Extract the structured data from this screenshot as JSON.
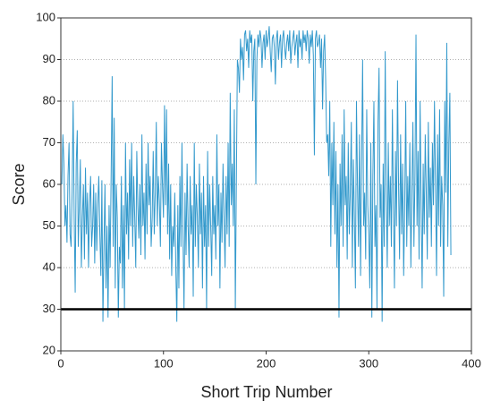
{
  "chart_data": {
    "type": "line",
    "xlabel": "Short Trip Number",
    "ylabel": "Score",
    "xlim": [
      0,
      400
    ],
    "xticks": [
      0,
      100,
      200,
      300,
      400
    ],
    "ylim": [
      20,
      100
    ],
    "yticks": [
      20,
      30,
      40,
      50,
      60,
      70,
      80,
      90,
      100
    ],
    "grid": true,
    "reference_line": 30,
    "reference_color": "#000000",
    "series": [
      {
        "name": null,
        "color": "#3399cc",
        "x": [
          1,
          2,
          3,
          4,
          5,
          6,
          7,
          8,
          9,
          10,
          11,
          12,
          13,
          14,
          15,
          16,
          17,
          18,
          19,
          20,
          21,
          22,
          23,
          24,
          25,
          26,
          27,
          28,
          29,
          30,
          31,
          32,
          33,
          34,
          35,
          36,
          37,
          38,
          39,
          40,
          41,
          42,
          43,
          44,
          45,
          46,
          47,
          48,
          49,
          50,
          51,
          52,
          53,
          54,
          55,
          56,
          57,
          58,
          59,
          60,
          61,
          62,
          63,
          64,
          65,
          66,
          67,
          68,
          69,
          70,
          71,
          72,
          73,
          74,
          75,
          76,
          77,
          78,
          79,
          80,
          81,
          82,
          83,
          84,
          85,
          86,
          87,
          88,
          89,
          90,
          91,
          92,
          93,
          94,
          95,
          96,
          97,
          98,
          99,
          100,
          101,
          102,
          103,
          104,
          105,
          106,
          107,
          108,
          109,
          110,
          111,
          112,
          113,
          114,
          115,
          116,
          117,
          118,
          119,
          120,
          121,
          122,
          123,
          124,
          125,
          126,
          127,
          128,
          129,
          130,
          131,
          132,
          133,
          134,
          135,
          136,
          137,
          138,
          139,
          140,
          141,
          142,
          143,
          144,
          145,
          146,
          147,
          148,
          149,
          150,
          151,
          152,
          153,
          154,
          155,
          156,
          157,
          158,
          159,
          160,
          161,
          162,
          163,
          164,
          165,
          166,
          167,
          168,
          169,
          170,
          171,
          172,
          173,
          174,
          175,
          176,
          177,
          178,
          179,
          180,
          181,
          182,
          183,
          184,
          185,
          186,
          187,
          188,
          189,
          190,
          191,
          192,
          193,
          194,
          195,
          196,
          197,
          198,
          199,
          200,
          201,
          202,
          203,
          204,
          205,
          206,
          207,
          208,
          209,
          210,
          211,
          212,
          213,
          214,
          215,
          216,
          217,
          218,
          219,
          220,
          221,
          222,
          223,
          224,
          225,
          226,
          227,
          228,
          229,
          230,
          231,
          232,
          233,
          234,
          235,
          236,
          237,
          238,
          239,
          240,
          241,
          242,
          243,
          244,
          245,
          246,
          247,
          248,
          249,
          250,
          251,
          252,
          253,
          254,
          255,
          256,
          257,
          258,
          259,
          260,
          261,
          262,
          263,
          264,
          265,
          266,
          267,
          268,
          269,
          270,
          271,
          272,
          273,
          274,
          275,
          276,
          277,
          278,
          279,
          280,
          281,
          282,
          283,
          284,
          285,
          286,
          287,
          288,
          289,
          290,
          291,
          292,
          293,
          294,
          295,
          296,
          297,
          298,
          299,
          300,
          301,
          302,
          303,
          304,
          305,
          306,
          307,
          308,
          309,
          310,
          311,
          312,
          313,
          314,
          315,
          316,
          317,
          318,
          319,
          320,
          321,
          322,
          323,
          324,
          325,
          326,
          327,
          328,
          329,
          330,
          331,
          332,
          333,
          334,
          335,
          336,
          337,
          338,
          339,
          340,
          341,
          342,
          343,
          344,
          345,
          346,
          347,
          348,
          349,
          350,
          351,
          352,
          353,
          354,
          355,
          356,
          357,
          358,
          359,
          360,
          361,
          362,
          363,
          364,
          365,
          366,
          367,
          368,
          369,
          370,
          371,
          372,
          373,
          374,
          375,
          376,
          377,
          378,
          379,
          380
        ],
        "values": [
          60,
          72,
          65,
          50,
          55,
          46,
          62,
          70,
          48,
          45,
          58,
          80,
          52,
          34,
          65,
          73,
          45,
          55,
          66,
          40,
          52,
          60,
          42,
          64,
          48,
          58,
          40,
          55,
          62,
          45,
          50,
          60,
          41,
          58,
          44,
          55,
          62,
          48,
          38,
          61,
          27,
          45,
          60,
          35,
          50,
          28,
          55,
          40,
          62,
          86,
          45,
          76,
          35,
          60,
          52,
          28,
          45,
          41,
          62,
          35,
          55,
          30,
          70,
          48,
          58,
          42,
          66,
          50,
          70,
          45,
          62,
          52,
          40,
          68,
          55,
          47,
          60,
          43,
          72,
          50,
          58,
          42,
          65,
          48,
          70,
          55,
          62,
          45,
          52,
          68,
          48,
          58,
          75,
          50,
          62,
          56,
          45,
          70,
          60,
          52,
          79,
          55,
          78,
          48,
          65,
          42,
          60,
          38,
          50,
          45,
          58,
          40,
          27,
          55,
          35,
          62,
          45,
          70,
          48,
          30,
          58,
          43,
          65,
          50,
          40,
          62,
          48,
          55,
          33,
          70,
          45,
          60,
          52,
          40,
          65,
          48,
          58,
          35,
          62,
          45,
          55,
          30,
          68,
          45,
          60,
          50,
          38,
          62,
          48,
          55,
          42,
          72,
          50,
          60,
          35,
          58,
          46,
          65,
          52,
          40,
          62,
          48,
          70,
          45,
          82,
          55,
          65,
          50,
          78,
          30,
          60,
          90,
          88,
          82,
          95,
          90,
          93,
          85,
          96,
          97,
          92,
          95,
          88,
          97,
          94,
          96,
          80,
          92,
          95,
          60,
          90,
          96,
          93,
          97,
          95,
          88,
          94,
          96,
          90,
          97,
          93,
          95,
          98,
          92,
          87,
          95,
          96,
          93,
          84,
          95,
          97,
          90,
          94,
          96,
          88,
          95,
          97,
          93,
          90,
          94,
          96,
          92,
          97,
          89,
          93,
          95,
          97,
          91,
          94,
          96,
          88,
          97,
          93,
          95,
          90,
          97,
          94,
          96,
          92,
          97,
          95,
          89,
          96,
          93,
          97,
          91,
          67,
          95,
          97,
          93,
          94,
          96,
          88,
          95,
          78,
          92,
          96,
          85,
          70,
          72,
          62,
          80,
          45,
          70,
          55,
          75,
          48,
          68,
          40,
          60,
          28,
          65,
          50,
          72,
          45,
          78,
          55,
          62,
          42,
          70,
          48,
          58,
          75,
          40,
          66,
          52,
          35,
          80,
          60,
          45,
          72,
          38,
          65,
          90,
          50,
          58,
          42,
          78,
          55,
          48,
          35,
          70,
          28,
          62,
          80,
          45,
          55,
          30,
          75,
          88,
          52,
          60,
          27,
          65,
          45,
          92,
          58,
          40,
          70,
          50,
          62,
          45,
          78,
          55,
          35,
          68,
          50,
          85,
          60,
          42,
          72,
          48,
          65,
          38,
          55,
          80,
          45,
          62,
          50,
          70,
          40,
          58,
          75,
          45,
          62,
          96,
          50,
          68,
          42,
          80,
          55,
          35,
          65,
          48,
          72,
          58,
          42,
          75,
          52,
          64,
          45,
          70,
          55,
          80,
          60,
          38,
          72,
          50,
          78,
          45,
          62,
          55,
          33,
          80,
          58,
          94,
          45,
          70,
          82,
          43
        ]
      }
    ]
  }
}
